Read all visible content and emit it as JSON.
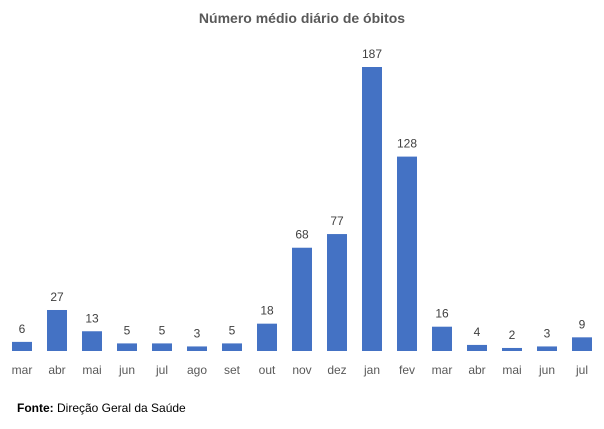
{
  "chart_data": {
    "type": "bar",
    "title": "Número médio diário de óbitos",
    "categories": [
      "mar",
      "abr",
      "mai",
      "jun",
      "jul",
      "ago",
      "set",
      "out",
      "nov",
      "dez",
      "jan",
      "fev",
      "mar",
      "abr",
      "mai",
      "jun",
      "jul"
    ],
    "values": [
      6,
      27,
      13,
      5,
      5,
      3,
      5,
      18,
      68,
      77,
      187,
      128,
      16,
      4,
      2,
      3,
      9
    ],
    "xlabel": "",
    "ylabel": "",
    "ylim": [
      0,
      187
    ],
    "grid": false,
    "bar_color": "#4472C4"
  },
  "source": {
    "label": "Fonte:",
    "text": " Direção Geral da Saúde"
  }
}
